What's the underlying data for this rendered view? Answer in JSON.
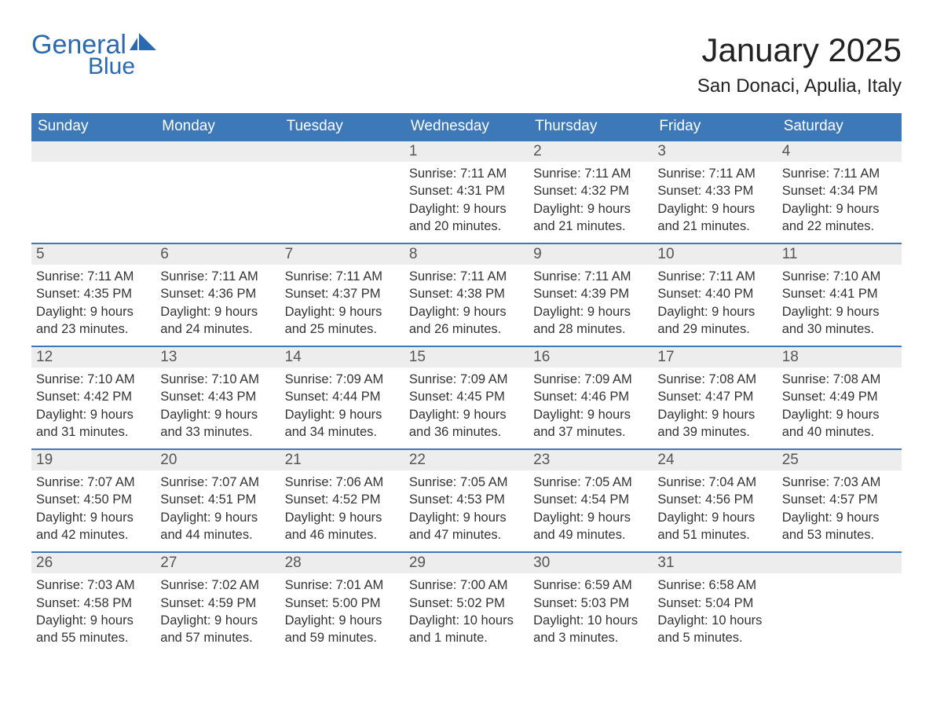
{
  "logo": {
    "word1": "General",
    "word2": "Blue"
  },
  "title": "January 2025",
  "location": "San Donaci, Apulia, Italy",
  "colors": {
    "header_bg": "#3d79b8",
    "header_text": "#ffffff",
    "daynum_bg": "#ededed",
    "daynum_text": "#555555",
    "body_text": "#333333",
    "border": "#3d79b8",
    "logo": "#2a6ab0"
  },
  "weekdays": [
    "Sunday",
    "Monday",
    "Tuesday",
    "Wednesday",
    "Thursday",
    "Friday",
    "Saturday"
  ],
  "weeks": [
    [
      null,
      null,
      null,
      {
        "n": "1",
        "sr": "7:11 AM",
        "ss": "4:31 PM",
        "dl": "9 hours and 20 minutes."
      },
      {
        "n": "2",
        "sr": "7:11 AM",
        "ss": "4:32 PM",
        "dl": "9 hours and 21 minutes."
      },
      {
        "n": "3",
        "sr": "7:11 AM",
        "ss": "4:33 PM",
        "dl": "9 hours and 21 minutes."
      },
      {
        "n": "4",
        "sr": "7:11 AM",
        "ss": "4:34 PM",
        "dl": "9 hours and 22 minutes."
      }
    ],
    [
      {
        "n": "5",
        "sr": "7:11 AM",
        "ss": "4:35 PM",
        "dl": "9 hours and 23 minutes."
      },
      {
        "n": "6",
        "sr": "7:11 AM",
        "ss": "4:36 PM",
        "dl": "9 hours and 24 minutes."
      },
      {
        "n": "7",
        "sr": "7:11 AM",
        "ss": "4:37 PM",
        "dl": "9 hours and 25 minutes."
      },
      {
        "n": "8",
        "sr": "7:11 AM",
        "ss": "4:38 PM",
        "dl": "9 hours and 26 minutes."
      },
      {
        "n": "9",
        "sr": "7:11 AM",
        "ss": "4:39 PM",
        "dl": "9 hours and 28 minutes."
      },
      {
        "n": "10",
        "sr": "7:11 AM",
        "ss": "4:40 PM",
        "dl": "9 hours and 29 minutes."
      },
      {
        "n": "11",
        "sr": "7:10 AM",
        "ss": "4:41 PM",
        "dl": "9 hours and 30 minutes."
      }
    ],
    [
      {
        "n": "12",
        "sr": "7:10 AM",
        "ss": "4:42 PM",
        "dl": "9 hours and 31 minutes."
      },
      {
        "n": "13",
        "sr": "7:10 AM",
        "ss": "4:43 PM",
        "dl": "9 hours and 33 minutes."
      },
      {
        "n": "14",
        "sr": "7:09 AM",
        "ss": "4:44 PM",
        "dl": "9 hours and 34 minutes."
      },
      {
        "n": "15",
        "sr": "7:09 AM",
        "ss": "4:45 PM",
        "dl": "9 hours and 36 minutes."
      },
      {
        "n": "16",
        "sr": "7:09 AM",
        "ss": "4:46 PM",
        "dl": "9 hours and 37 minutes."
      },
      {
        "n": "17",
        "sr": "7:08 AM",
        "ss": "4:47 PM",
        "dl": "9 hours and 39 minutes."
      },
      {
        "n": "18",
        "sr": "7:08 AM",
        "ss": "4:49 PM",
        "dl": "9 hours and 40 minutes."
      }
    ],
    [
      {
        "n": "19",
        "sr": "7:07 AM",
        "ss": "4:50 PM",
        "dl": "9 hours and 42 minutes."
      },
      {
        "n": "20",
        "sr": "7:07 AM",
        "ss": "4:51 PM",
        "dl": "9 hours and 44 minutes."
      },
      {
        "n": "21",
        "sr": "7:06 AM",
        "ss": "4:52 PM",
        "dl": "9 hours and 46 minutes."
      },
      {
        "n": "22",
        "sr": "7:05 AM",
        "ss": "4:53 PM",
        "dl": "9 hours and 47 minutes."
      },
      {
        "n": "23",
        "sr": "7:05 AM",
        "ss": "4:54 PM",
        "dl": "9 hours and 49 minutes."
      },
      {
        "n": "24",
        "sr": "7:04 AM",
        "ss": "4:56 PM",
        "dl": "9 hours and 51 minutes."
      },
      {
        "n": "25",
        "sr": "7:03 AM",
        "ss": "4:57 PM",
        "dl": "9 hours and 53 minutes."
      }
    ],
    [
      {
        "n": "26",
        "sr": "7:03 AM",
        "ss": "4:58 PM",
        "dl": "9 hours and 55 minutes."
      },
      {
        "n": "27",
        "sr": "7:02 AM",
        "ss": "4:59 PM",
        "dl": "9 hours and 57 minutes."
      },
      {
        "n": "28",
        "sr": "7:01 AM",
        "ss": "5:00 PM",
        "dl": "9 hours and 59 minutes."
      },
      {
        "n": "29",
        "sr": "7:00 AM",
        "ss": "5:02 PM",
        "dl": "10 hours and 1 minute."
      },
      {
        "n": "30",
        "sr": "6:59 AM",
        "ss": "5:03 PM",
        "dl": "10 hours and 3 minutes."
      },
      {
        "n": "31",
        "sr": "6:58 AM",
        "ss": "5:04 PM",
        "dl": "10 hours and 5 minutes."
      },
      null
    ]
  ],
  "labels": {
    "sunrise": "Sunrise: ",
    "sunset": "Sunset: ",
    "daylight": "Daylight: "
  }
}
